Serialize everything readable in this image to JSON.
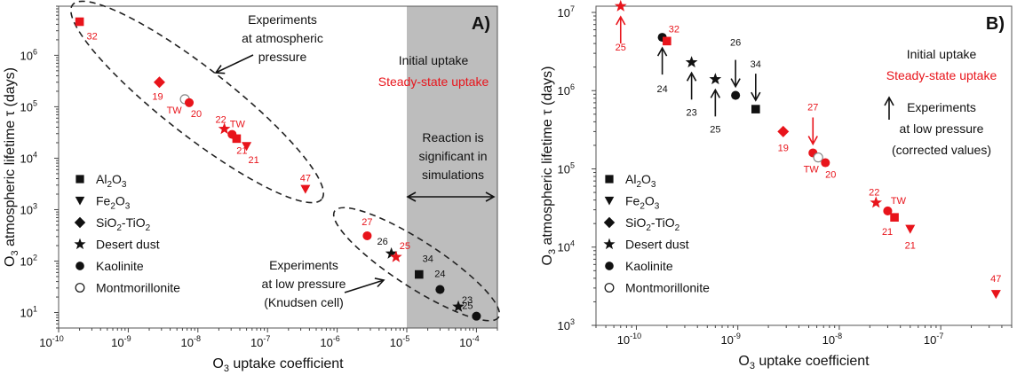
{
  "chart_data": [
    {
      "type": "scatter",
      "panel_label": "A)",
      "xscale": "log",
      "yscale": "log",
      "xlim": [
        1e-10,
        0.0002
      ],
      "ylim": [
        5,
        9000000
      ],
      "xlabel_main": "O",
      "xlabel_sub": "3",
      "xlabel_rest": " uptake coefficient",
      "ylabel_main": "O",
      "ylabel_sub": "3",
      "ylabel_rest": " atmospheric lifetime τ (days)",
      "xticks": [
        {
          "value": 1e-10,
          "base": "10",
          "exp": "-10"
        },
        {
          "value": 1e-09,
          "base": "10",
          "exp": "-9"
        },
        {
          "value": 1e-08,
          "base": "10",
          "exp": "-8"
        },
        {
          "value": 1e-07,
          "base": "10",
          "exp": "-7"
        },
        {
          "value": 1e-06,
          "base": "10",
          "exp": "-6"
        },
        {
          "value": 1e-05,
          "base": "10",
          "exp": "-5"
        },
        {
          "value": 0.0001,
          "base": "10",
          "exp": "-4"
        }
      ],
      "yticks": [
        {
          "value": 10,
          "base": "10",
          "exp": "1"
        },
        {
          "value": 100,
          "base": "10",
          "exp": "2"
        },
        {
          "value": 1000,
          "base": "10",
          "exp": "3"
        },
        {
          "value": 10000,
          "base": "10",
          "exp": "4"
        },
        {
          "value": 100000,
          "base": "10",
          "exp": "5"
        },
        {
          "value": 1000000,
          "base": "10",
          "exp": "6"
        }
      ],
      "shaded_region": {
        "x_from": 1e-05,
        "x_to": 0.0002,
        "color": "#bdbdbd"
      },
      "shade_text": [
        "Reaction is",
        "significant in",
        "simulations"
      ],
      "legend_title": [
        "Initial uptake",
        "Steady-state uptake"
      ],
      "annotations": [
        {
          "lines": [
            "Experiments",
            "at atmospheric",
            "pressure"
          ]
        },
        {
          "lines": [
            "Experiments",
            "at low pressure",
            "(Knudsen cell)"
          ]
        }
      ],
      "series": [
        {
          "name": "Al2O3",
          "legend_main": "Al",
          "legend_sub1": "2",
          "legend_mid": "O",
          "legend_sub2": "3",
          "marker": "square"
        },
        {
          "name": "Fe2O3",
          "legend_main": "Fe",
          "legend_sub1": "2",
          "legend_mid": "O",
          "legend_sub2": "3",
          "marker": "triangle-down"
        },
        {
          "name": "SiO2-TiO2",
          "legend_main": "SiO",
          "legend_sub1": "2",
          "legend_mid": "-TiO",
          "legend_sub2": "2",
          "marker": "diamond"
        },
        {
          "name": "Desert dust",
          "legend_main": "Desert dust",
          "marker": "star"
        },
        {
          "name": "Kaolinite",
          "legend_main": "Kaolinite",
          "marker": "circle"
        },
        {
          "name": "Montmorillonite",
          "legend_main": "Montmorillonite",
          "marker": "circle-open"
        }
      ],
      "points": [
        {
          "series": "Al2O3",
          "x": 2e-10,
          "y": 4500000,
          "color": "#e8141b",
          "label": "32"
        },
        {
          "series": "SiO2-TiO2",
          "x": 2.8e-09,
          "y": 300000,
          "color": "#e8141b",
          "label": "19"
        },
        {
          "series": "Montmorillonite",
          "x": 6.5e-09,
          "y": 140000,
          "color": "#e8141b",
          "label": "TW"
        },
        {
          "series": "Kaolinite",
          "x": 7.5e-09,
          "y": 120000,
          "color": "#e8141b",
          "label": "20"
        },
        {
          "series": "Desert dust",
          "x": 2.4e-08,
          "y": 37000,
          "color": "#e8141b",
          "label": "22"
        },
        {
          "series": "Kaolinite",
          "x": 3.1e-08,
          "y": 29000,
          "color": "#e8141b",
          "label": "TW"
        },
        {
          "series": "Al2O3",
          "x": 3.6e-08,
          "y": 24000,
          "color": "#e8141b",
          "label": "21"
        },
        {
          "series": "Fe2O3",
          "x": 5e-08,
          "y": 17000,
          "color": "#e8141b",
          "label": "21"
        },
        {
          "series": "Fe2O3",
          "x": 3.5e-07,
          "y": 2500,
          "color": "#e8141b",
          "label": "47"
        },
        {
          "series": "Kaolinite",
          "x": 2.7e-06,
          "y": 310,
          "color": "#e8141b",
          "label": "27"
        },
        {
          "series": "Desert dust",
          "x": 6e-06,
          "y": 140,
          "color": "#111111",
          "label": "26"
        },
        {
          "series": "Desert dust",
          "x": 7e-06,
          "y": 120,
          "color": "#e8141b",
          "label": "25"
        },
        {
          "series": "Al2O3",
          "x": 1.5e-05,
          "y": 55,
          "color": "#111111",
          "label": "34"
        },
        {
          "series": "Kaolinite",
          "x": 3e-05,
          "y": 28,
          "color": "#111111",
          "label": "24"
        },
        {
          "series": "Desert dust",
          "x": 5.5e-05,
          "y": 13,
          "color": "#111111",
          "label": "23"
        },
        {
          "series": "Kaolinite",
          "x": 0.0001,
          "y": 8.5,
          "color": "#111111",
          "label": "25"
        }
      ]
    },
    {
      "type": "scatter",
      "panel_label": "B)",
      "xscale": "log",
      "yscale": "log",
      "xlim": [
        4e-11,
        5e-07
      ],
      "ylim": [
        1000,
        12000000
      ],
      "xlabel_main": "O",
      "xlabel_sub": "3",
      "xlabel_rest": " uptake coefficient",
      "ylabel_main": "O",
      "ylabel_sub": "3",
      "ylabel_rest": " atmospheric lifetime τ (days)",
      "xticks": [
        {
          "value": 1e-10,
          "base": "10",
          "exp": "-10"
        },
        {
          "value": 1e-09,
          "base": "10",
          "exp": "-9"
        },
        {
          "value": 1e-08,
          "base": "10",
          "exp": "-8"
        },
        {
          "value": 1e-07,
          "base": "10",
          "exp": "-7"
        }
      ],
      "yticks": [
        {
          "value": 1000,
          "base": "10",
          "exp": "3"
        },
        {
          "value": 10000,
          "base": "10",
          "exp": "4"
        },
        {
          "value": 100000,
          "base": "10",
          "exp": "5"
        },
        {
          "value": 1000000,
          "base": "10",
          "exp": "6"
        },
        {
          "value": 10000000,
          "base": "10",
          "exp": "7"
        }
      ],
      "legend_title": [
        "Initial uptake",
        "Steady-state uptake"
      ],
      "annotations": [
        {
          "lines": [
            "Experiments",
            "at low pressure",
            "(corrected values)"
          ]
        }
      ],
      "series": [
        {
          "name": "Al2O3",
          "legend_main": "Al",
          "legend_sub1": "2",
          "legend_mid": "O",
          "legend_sub2": "3",
          "marker": "square"
        },
        {
          "name": "Fe2O3",
          "legend_main": "Fe",
          "legend_sub1": "2",
          "legend_mid": "O",
          "legend_sub2": "3",
          "marker": "triangle-down"
        },
        {
          "name": "SiO2-TiO2",
          "legend_main": "SiO",
          "legend_sub1": "2",
          "legend_mid": "-TiO",
          "legend_sub2": "2",
          "marker": "diamond"
        },
        {
          "name": "Desert dust",
          "legend_main": "Desert dust",
          "marker": "star"
        },
        {
          "name": "Kaolinite",
          "legend_main": "Kaolinite",
          "marker": "circle"
        },
        {
          "name": "Montmorillonite",
          "legend_main": "Montmorillonite",
          "marker": "circle-open"
        }
      ],
      "points": [
        {
          "series": "Desert dust",
          "x": 7e-11,
          "y": 12000000,
          "color": "#e8141b",
          "label": "25",
          "arrow": "up"
        },
        {
          "series": "Kaolinite",
          "x": 1.8e-10,
          "y": 4800000,
          "color": "#111111",
          "label": "24",
          "arrow": "up"
        },
        {
          "series": "Al2O3",
          "x": 2e-10,
          "y": 4300000,
          "color": "#e8141b",
          "label": "32"
        },
        {
          "series": "Desert dust",
          "x": 3.5e-10,
          "y": 2300000,
          "color": "#111111",
          "label": "23",
          "arrow": "up"
        },
        {
          "series": "Desert dust",
          "x": 6e-10,
          "y": 1400000,
          "color": "#111111",
          "label": "25",
          "arrow": "up"
        },
        {
          "series": "Kaolinite",
          "x": 9.5e-10,
          "y": 870000,
          "color": "#111111",
          "label": "26",
          "arrow": "down"
        },
        {
          "series": "Al2O3",
          "x": 1.5e-09,
          "y": 580000,
          "color": "#111111",
          "label": "34",
          "arrow": "down"
        },
        {
          "series": "SiO2-TiO2",
          "x": 2.8e-09,
          "y": 300000,
          "color": "#e8141b",
          "label": "19"
        },
        {
          "series": "Kaolinite",
          "x": 5.5e-09,
          "y": 160000,
          "color": "#e8141b",
          "label": "27",
          "arrow": "down"
        },
        {
          "series": "Montmorillonite",
          "x": 6.2e-09,
          "y": 140000,
          "color": "#e8141b",
          "label": "TW"
        },
        {
          "series": "Kaolinite",
          "x": 7.3e-09,
          "y": 120000,
          "color": "#e8141b",
          "label": "20"
        },
        {
          "series": "Desert dust",
          "x": 2.3e-08,
          "y": 37000,
          "color": "#e8141b",
          "label": "22"
        },
        {
          "series": "Kaolinite",
          "x": 3e-08,
          "y": 29000,
          "color": "#e8141b",
          "label": "TW"
        },
        {
          "series": "Al2O3",
          "x": 3.5e-08,
          "y": 24000,
          "color": "#e8141b",
          "label": "21"
        },
        {
          "series": "Fe2O3",
          "x": 5e-08,
          "y": 17000,
          "color": "#e8141b",
          "label": "21"
        },
        {
          "series": "Fe2O3",
          "x": 3.5e-07,
          "y": 2500,
          "color": "#e8141b",
          "label": "47"
        }
      ]
    }
  ],
  "colors": {
    "red": "#e8141b",
    "black": "#111111",
    "shade": "#bdbdbd"
  }
}
